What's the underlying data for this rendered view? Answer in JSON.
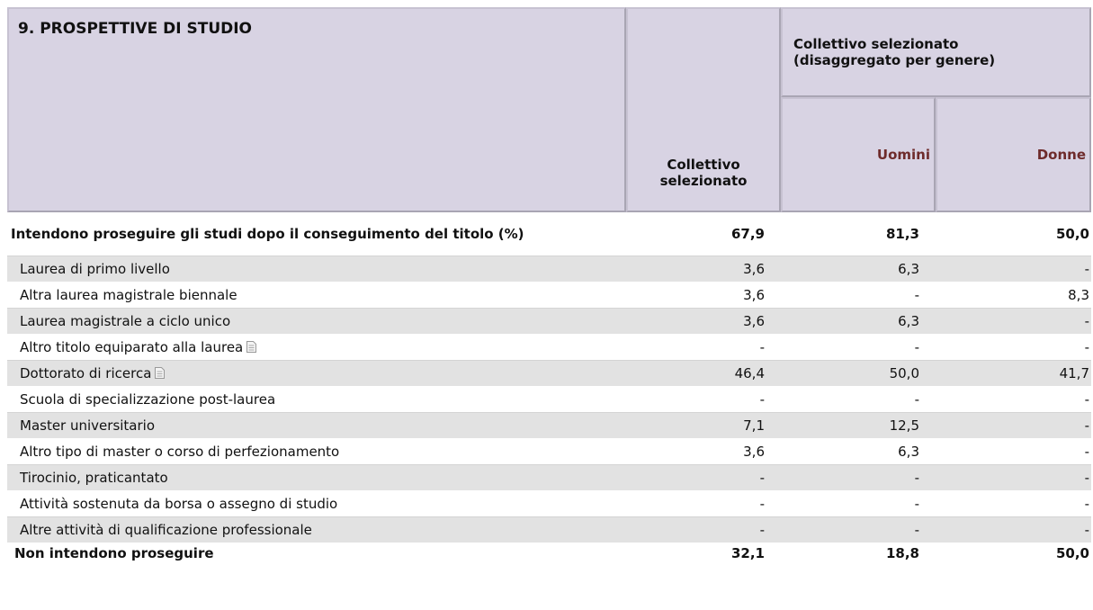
{
  "header": {
    "title": "9. PROSPETTIVE DI STUDIO",
    "col_total": "Collettivo selezionato",
    "col_gender": "Collettivo selezionato (disaggregato per genere)",
    "men": "Uomini",
    "women": "Donne"
  },
  "table": {
    "rows": [
      [
        "Intendono proseguire gli studi dopo il conseguimento del titolo (%)",
        "67,9",
        "81,3",
        "50,0"
      ],
      [
        "Laurea di primo livello",
        "3,6",
        "6,3",
        "-"
      ],
      [
        "Altra laurea magistrale biennale",
        "3,6",
        "-",
        "8,3"
      ],
      [
        "Laurea magistrale a ciclo unico",
        "3,6",
        "6,3",
        "-"
      ],
      [
        "Altro titolo equiparato alla laurea",
        "-",
        "-",
        "-"
      ],
      [
        "Dottorato di ricerca",
        "46,4",
        "50,0",
        "41,7"
      ],
      [
        "Scuola di specializzazione post-laurea",
        "-",
        "-",
        "-"
      ],
      [
        "Master universitario",
        "7,1",
        "12,5",
        "-"
      ],
      [
        "Altro tipo di master o corso di perfezionamento",
        "3,6",
        "6,3",
        "-"
      ],
      [
        "Tirocinio, praticantato",
        "-",
        "-",
        "-"
      ],
      [
        "Attività sostenuta da borsa o assegno di studio",
        "-",
        "-",
        "-"
      ],
      [
        "Altre attività di qualificazione professionale",
        "-",
        "-",
        "-"
      ],
      [
        "Non intendono proseguire",
        "32,1",
        "18,8",
        "50,0"
      ]
    ]
  }
}
